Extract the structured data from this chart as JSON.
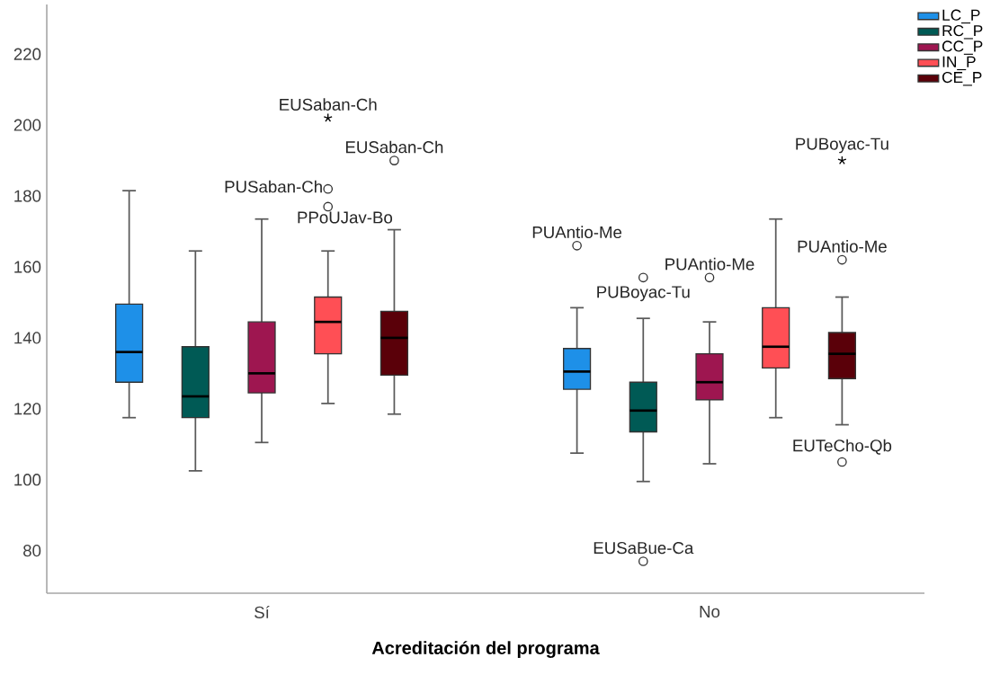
{
  "chart_data": {
    "type": "box",
    "xlabel": "Acreditación del programa",
    "categories": [
      "Sí",
      "No"
    ],
    "series": [
      {
        "name": "LC_P",
        "color": "#1e90e8",
        "boxes": [
          {
            "low": 117.5,
            "q1": 127.5,
            "median": 136,
            "q3": 149.5,
            "high": 181.5
          },
          {
            "low": 107.5,
            "q1": 125.5,
            "median": 130.5,
            "q3": 137,
            "high": 148.5,
            "outliers": [
              166
            ]
          }
        ]
      },
      {
        "name": "RC_P",
        "color": "#005a55",
        "boxes": [
          {
            "low": 102.5,
            "q1": 117.5,
            "median": 123.5,
            "q3": 137.5,
            "high": 164.5
          },
          {
            "low": 99.5,
            "q1": 113.5,
            "median": 119.5,
            "q3": 127.5,
            "high": 145.5,
            "outliers": [
              157,
              77
            ]
          }
        ]
      },
      {
        "name": "CC_P",
        "color": "#9e1650",
        "boxes": [
          {
            "low": 110.5,
            "q1": 124.5,
            "median": 130,
            "q3": 144.5,
            "high": 173.5
          },
          {
            "low": 104.5,
            "q1": 122.5,
            "median": 127.5,
            "q3": 135.5,
            "high": 144.5,
            "outliers": [
              157
            ]
          }
        ]
      },
      {
        "name": "IN_P",
        "color": "#ff4f55",
        "boxes": [
          {
            "low": 121.5,
            "q1": 135.5,
            "median": 144.5,
            "q3": 151.5,
            "high": 164.5,
            "outliers": [
              202,
              182,
              177
            ]
          },
          {
            "low": 117.5,
            "q1": 131.5,
            "median": 137.5,
            "q3": 148.5,
            "high": 173.5
          }
        ]
      },
      {
        "name": "CE_P",
        "color": "#5a0009",
        "boxes": [
          {
            "low": 118.5,
            "q1": 129.5,
            "median": 140,
            "q3": 147.5,
            "high": 170.5,
            "outliers": [
              190
            ]
          },
          {
            "low": 115.5,
            "q1": 128.5,
            "median": 135.5,
            "q3": 141.5,
            "high": 151.5,
            "outliers": [
              190,
              162,
              105
            ]
          }
        ]
      }
    ],
    "ylim": [
      68,
      234
    ],
    "yticks": [
      80,
      100,
      120,
      140,
      160,
      180,
      200,
      220
    ],
    "legend": "top right",
    "annotations": [
      "EUSaban-Ch",
      "PUSaban-Ch",
      "PPoUJav-Bo",
      "EUSaban-Ch",
      "PUAntio-Me",
      "PUBoyac-Tu",
      "EUSaBue-Ca",
      "PUAntio-Me",
      "PUBoyac-Tu",
      "PUAntio-Me",
      "EUTeCho-Qb"
    ]
  }
}
